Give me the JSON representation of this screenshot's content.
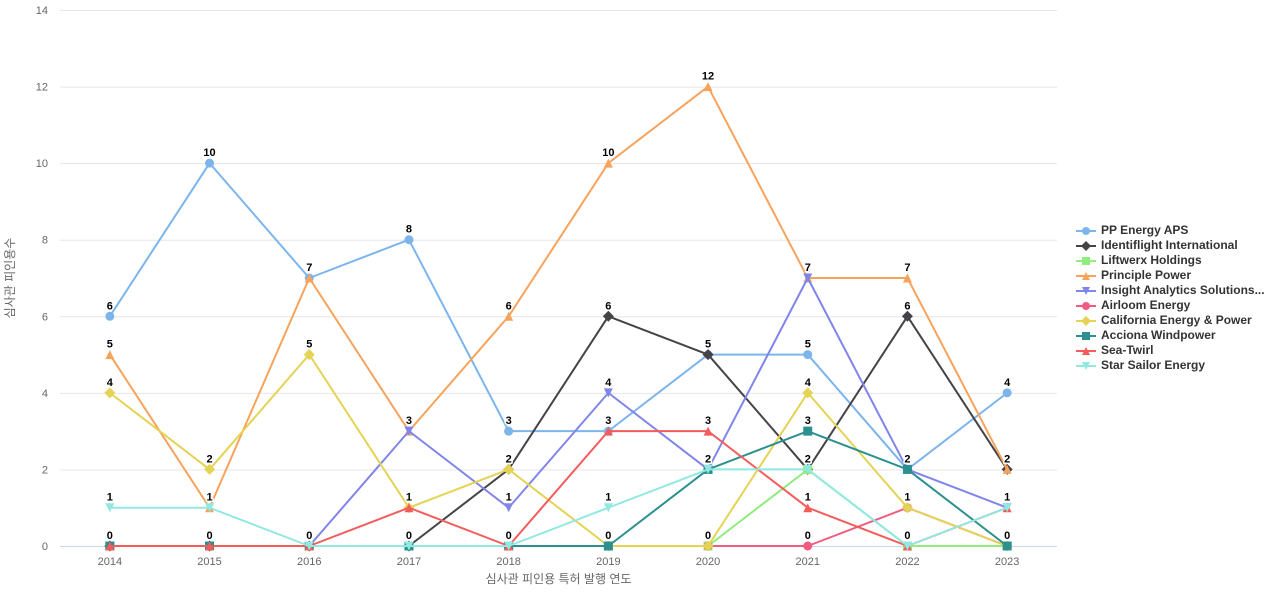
{
  "chart_data": {
    "type": "line",
    "title": "",
    "xlabel": "심사관 피인용 특허 발행 연도",
    "ylabel": "심사관 피인용수",
    "categories": [
      "2014",
      "2015",
      "2016",
      "2017",
      "2018",
      "2019",
      "2020",
      "2021",
      "2022",
      "2023"
    ],
    "ylim": [
      0,
      14
    ],
    "yticks": [
      0,
      2,
      4,
      6,
      8,
      10,
      12,
      14
    ],
    "grid": true,
    "legend_position": "right",
    "series": [
      {
        "name": "PP Energy APS",
        "color": "#7cb5ec",
        "marker": "circle",
        "values": [
          6,
          10,
          7,
          8,
          3,
          3,
          5,
          5,
          2,
          4
        ]
      },
      {
        "name": "Identiflight International",
        "color": "#434348",
        "marker": "diamond",
        "values": [
          0,
          0,
          0,
          0,
          2,
          6,
          5,
          2,
          6,
          2
        ]
      },
      {
        "name": "Liftwerx Holdings",
        "color": "#90ed7d",
        "marker": "square",
        "values": [
          0,
          0,
          0,
          0,
          0,
          0,
          0,
          2,
          0,
          0
        ]
      },
      {
        "name": "Principle Power",
        "color": "#f7a35c",
        "marker": "triangle",
        "values": [
          5,
          1,
          7,
          3,
          6,
          10,
          12,
          7,
          7,
          2
        ]
      },
      {
        "name": "Insight Analytics Solutions...",
        "color": "#8085e9",
        "marker": "triangle-down",
        "values": [
          0,
          0,
          0,
          3,
          1,
          4,
          2,
          7,
          2,
          1
        ]
      },
      {
        "name": "Airloom Energy",
        "color": "#f15c80",
        "marker": "circle",
        "values": [
          0,
          0,
          0,
          0,
          0,
          0,
          0,
          0,
          1,
          0
        ]
      },
      {
        "name": "California Energy & Power",
        "color": "#e4d354",
        "marker": "diamond",
        "values": [
          4,
          2,
          5,
          1,
          2,
          0,
          0,
          4,
          1,
          0
        ]
      },
      {
        "name": "Acciona Windpower",
        "color": "#2b908f",
        "marker": "square",
        "values": [
          0,
          0,
          0,
          0,
          0,
          0,
          2,
          3,
          2,
          0
        ]
      },
      {
        "name": "Sea-Twirl",
        "color": "#f45b5b",
        "marker": "triangle",
        "values": [
          0,
          0,
          0,
          1,
          0,
          3,
          3,
          1,
          0,
          1
        ]
      },
      {
        "name": "Star Sailor Energy",
        "color": "#91e8e1",
        "marker": "triangle-down",
        "values": [
          1,
          1,
          0,
          0,
          0,
          1,
          2,
          2,
          0,
          1
        ]
      }
    ],
    "colors": {
      "background": "#ffffff",
      "gridline": "#e6e6e6",
      "x_axis_line": "#ccd6eb",
      "tick_label": "#666666",
      "axis_title": "#666666",
      "legend_text": "#333333",
      "data_label": "#000000",
      "data_label_halo": "#ffffff"
    }
  }
}
